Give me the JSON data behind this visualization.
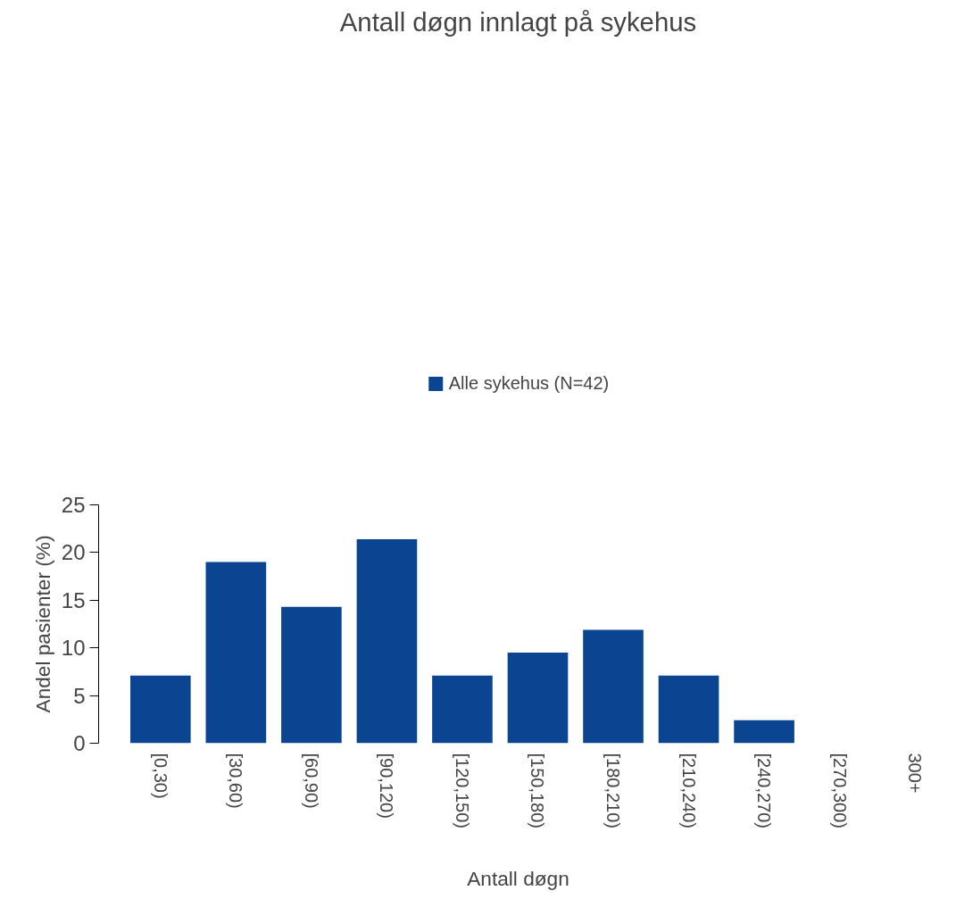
{
  "chart_data": {
    "type": "bar",
    "title": "Antall døgn innlagt på sykehus",
    "xlabel": "Antall døgn",
    "ylabel": "Andel pasienter (%)",
    "categories": [
      "[0,30)",
      "[30,60)",
      "[60,90)",
      "[90,120)",
      "[120,150)",
      "[150,180)",
      "[180,210)",
      "[210,240)",
      "[240,270)",
      "[270,300)",
      "300+"
    ],
    "series": [
      {
        "name": "Alle sykehus (N=42)",
        "color": "#0b4592",
        "values": [
          7.1,
          19.0,
          14.3,
          21.4,
          7.1,
          9.5,
          11.9,
          7.1,
          2.4,
          0,
          0
        ]
      }
    ],
    "ylim": [
      0,
      25
    ],
    "yticks": [
      0,
      5,
      10,
      15,
      20,
      25
    ],
    "grid": false,
    "legend": "top"
  }
}
